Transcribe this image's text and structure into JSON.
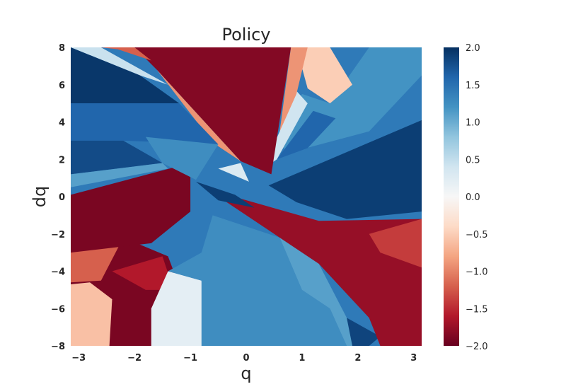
{
  "chart_data": {
    "type": "heatmap",
    "title": "Policy",
    "xlabel": "q",
    "ylabel": "dq",
    "xlim": [
      -3.14159,
      3.14159
    ],
    "ylim": [
      -8,
      8
    ],
    "x_ticks": [
      -3,
      -2,
      -1,
      0,
      1,
      2,
      3
    ],
    "x_tick_labels": [
      "−3",
      "−2",
      "−1",
      "0",
      "1",
      "2",
      "3"
    ],
    "y_ticks": [
      8,
      6,
      4,
      2,
      0,
      -2,
      -4,
      -6,
      -8
    ],
    "y_tick_labels": [
      "8",
      "6",
      "4",
      "2",
      "0",
      "−2",
      "−4",
      "−6",
      "−8"
    ],
    "colorbar": {
      "range": [
        -2.0,
        2.0
      ],
      "ticks": [
        2.0,
        1.5,
        1.0,
        0.5,
        0.0,
        -0.5,
        -1.0,
        -1.5,
        -2.0
      ],
      "tick_labels": [
        "2.0",
        "1.5",
        "1.0",
        "0.5",
        "0.0",
        "−0.5",
        "−1.0",
        "−1.5",
        "−2.0"
      ],
      "colormap": "RdBu"
    },
    "grid": false,
    "regions": [
      {
        "value": -1.9,
        "points": [
          [
            -3.14159,
            -8
          ],
          [
            -0.8,
            -8
          ],
          [
            -1.4,
            -3.2
          ],
          [
            -2.2,
            -2.2
          ],
          [
            -3.14159,
            -3.0
          ]
        ]
      },
      {
        "value": -1.2,
        "points": [
          [
            -3.14159,
            -3.0
          ],
          [
            -2.2,
            -2.2
          ],
          [
            -2.6,
            -4.5
          ],
          [
            -3.14159,
            -4.6
          ]
        ]
      },
      {
        "value": -1.6,
        "points": [
          [
            -2.4,
            -4.0
          ],
          [
            -1.5,
            -3.2
          ],
          [
            -1.3,
            -5.0
          ],
          [
            -1.8,
            -5.0
          ]
        ]
      },
      {
        "value": -0.6,
        "points": [
          [
            -3.14159,
            -8
          ],
          [
            -2.45,
            -8
          ],
          [
            -2.4,
            -5.5
          ],
          [
            -2.8,
            -4.6
          ],
          [
            -3.14159,
            -4.7
          ]
        ]
      },
      {
        "value": 0.2,
        "points": [
          [
            -1.7,
            -8
          ],
          [
            -0.7,
            -8
          ],
          [
            -0.8,
            -4.5
          ],
          [
            -1.4,
            -4.0
          ],
          [
            -1.7,
            -6.0
          ]
        ]
      },
      {
        "value": 1.25,
        "points": [
          [
            -1.4,
            -4.0
          ],
          [
            -0.8,
            -3.0
          ],
          [
            -0.6,
            -1.0
          ],
          [
            0.6,
            -2.2
          ],
          [
            1.0,
            -5.0
          ],
          [
            1.5,
            -6.0
          ],
          [
            1.8,
            -8
          ],
          [
            -0.8,
            -8
          ],
          [
            -0.8,
            -4.5
          ]
        ]
      },
      {
        "value": 1.1,
        "points": [
          [
            0.6,
            -2.2
          ],
          [
            1.3,
            -3.6
          ],
          [
            1.8,
            -6.5
          ],
          [
            2.1,
            -8
          ],
          [
            1.8,
            -8
          ],
          [
            1.5,
            -6.0
          ],
          [
            1.0,
            -5.0
          ]
        ]
      },
      {
        "value": 1.85,
        "points": [
          [
            1.8,
            -6.5
          ],
          [
            2.4,
            -7.5
          ],
          [
            2.2,
            -8
          ],
          [
            1.9,
            -8
          ]
        ]
      },
      {
        "value": -1.9,
        "points": [
          [
            -3.14159,
            0.1
          ],
          [
            -1.0,
            1.8
          ],
          [
            -1.0,
            -0.8
          ],
          [
            -1.7,
            -2.5
          ],
          [
            -3.14159,
            -3.0
          ]
        ]
      },
      {
        "value": -1.75,
        "points": [
          [
            -0.7,
            0.4
          ],
          [
            1.3,
            -1.3
          ],
          [
            3.14159,
            -1.2
          ],
          [
            3.14159,
            -8
          ],
          [
            2.4,
            -8
          ],
          [
            2.2,
            -6.5
          ],
          [
            1.3,
            -3.6
          ],
          [
            0.6,
            -2.2
          ]
        ]
      },
      {
        "value": -1.4,
        "points": [
          [
            2.2,
            -2.0
          ],
          [
            3.14159,
            -1.2
          ],
          [
            3.14159,
            -3.8
          ],
          [
            2.4,
            -3.0
          ]
        ]
      },
      {
        "value": 1.9,
        "points": [
          [
            -0.9,
            0.8
          ],
          [
            -0.2,
            0.1
          ],
          [
            0.15,
            -0.6
          ],
          [
            -0.5,
            -0.2
          ]
        ]
      },
      {
        "value": 1.9,
        "points": [
          [
            0.4,
            0.6
          ],
          [
            3.14159,
            4.1
          ],
          [
            3.14159,
            -0.8
          ],
          [
            1.8,
            -1.2
          ],
          [
            0.9,
            -0.3
          ]
        ]
      },
      {
        "value": 1.2,
        "points": [
          [
            0.7,
            2.3
          ],
          [
            2.2,
            3.5
          ],
          [
            3.14159,
            6.5
          ],
          [
            3.14159,
            8
          ],
          [
            2.2,
            8
          ],
          [
            1.5,
            5.0
          ],
          [
            1.0,
            5.5
          ],
          [
            0.6,
            3.5
          ]
        ]
      },
      {
        "value": 1.6,
        "points": [
          [
            0.55,
            2.0
          ],
          [
            1.1,
            2.6
          ],
          [
            1.6,
            4.2
          ],
          [
            1.2,
            4.6
          ]
        ]
      },
      {
        "value": 0.4,
        "points": [
          [
            0.3,
            1.5
          ],
          [
            0.55,
            2.0
          ],
          [
            1.1,
            5.0
          ],
          [
            0.8,
            6.0
          ],
          [
            0.6,
            3.5
          ]
        ]
      },
      {
        "value": -0.5,
        "points": [
          [
            0.9,
            8
          ],
          [
            1.5,
            8
          ],
          [
            1.9,
            6.0
          ],
          [
            1.5,
            5.0
          ],
          [
            1.1,
            5.8
          ]
        ]
      },
      {
        "value": -0.9,
        "points": [
          [
            0.8,
            8
          ],
          [
            1.1,
            8
          ],
          [
            0.9,
            5.5
          ],
          [
            0.6,
            3.5
          ]
        ]
      },
      {
        "value": -1.85,
        "points": [
          [
            -2.0,
            8
          ],
          [
            0.8,
            8
          ],
          [
            0.45,
            1.2
          ],
          [
            -0.1,
            1.9
          ],
          [
            -1.6,
            6.8
          ]
        ]
      },
      {
        "value": -0.9,
        "points": [
          [
            -1.6,
            6.8
          ],
          [
            -0.1,
            1.9
          ],
          [
            -0.6,
            2.9
          ]
        ]
      },
      {
        "value": -1.2,
        "points": [
          [
            -2.6,
            8
          ],
          [
            -2.0,
            8
          ],
          [
            -1.7,
            7.3
          ],
          [
            -2.3,
            7.9
          ]
        ]
      },
      {
        "value": 0.45,
        "points": [
          [
            -3.14159,
            8
          ],
          [
            -2.6,
            8
          ],
          [
            -1.4,
            6.0
          ],
          [
            -1.9,
            6.5
          ]
        ]
      },
      {
        "value": 1.95,
        "points": [
          [
            -3.14159,
            8
          ],
          [
            -1.9,
            6.5
          ],
          [
            -1.2,
            5.0
          ],
          [
            -3.14159,
            5.0
          ]
        ]
      },
      {
        "value": 1.6,
        "points": [
          [
            -3.14159,
            5.0
          ],
          [
            -1.2,
            5.0
          ],
          [
            -0.5,
            2.8
          ],
          [
            -2.2,
            3.0
          ],
          [
            -3.14159,
            3.0
          ]
        ]
      },
      {
        "value": 1.25,
        "points": [
          [
            -1.8,
            3.2
          ],
          [
            -0.5,
            2.8
          ],
          [
            -0.9,
            0.9
          ],
          [
            -1.5,
            1.8
          ]
        ]
      },
      {
        "value": 1.8,
        "points": [
          [
            -3.14159,
            3.0
          ],
          [
            -2.2,
            3.0
          ],
          [
            -1.5,
            1.8
          ],
          [
            -3.14159,
            1.2
          ]
        ]
      },
      {
        "value": 1.1,
        "points": [
          [
            -3.14159,
            1.2
          ],
          [
            -1.5,
            1.8
          ],
          [
            -1.4,
            1.5
          ],
          [
            -3.14159,
            0.5
          ]
        ]
      },
      {
        "value": 0.3,
        "points": [
          [
            -0.5,
            1.5
          ],
          [
            0.05,
            0.8
          ],
          [
            -0.1,
            1.8
          ]
        ]
      }
    ]
  }
}
